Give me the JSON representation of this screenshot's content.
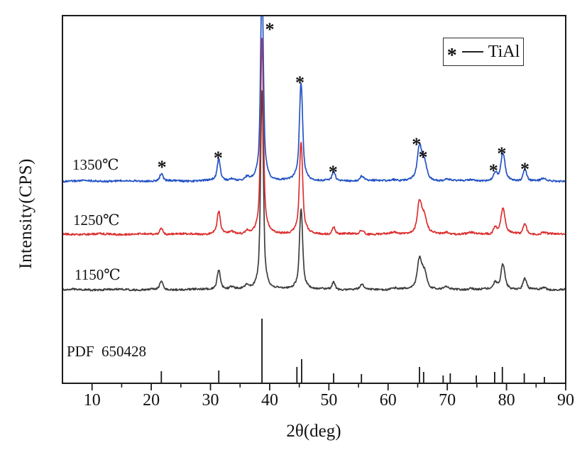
{
  "chart_data": {
    "type": "line",
    "title": "",
    "xlabel": "2θ(deg)",
    "ylabel": "Intensity(CPS)",
    "x_range": [
      5,
      90
    ],
    "x_major_ticks": [
      10,
      20,
      30,
      40,
      50,
      60,
      70,
      80,
      90
    ],
    "x_minor_ticks": [
      15,
      25,
      35,
      45,
      55,
      65,
      75,
      85
    ],
    "y_ticks_shown": false,
    "grid": false,
    "legend": {
      "marker": "*",
      "label": "TiAl",
      "position": "top-right"
    },
    "series": [
      {
        "name": "1350℃",
        "color": "#2353c4",
        "baseline": 255,
        "seed": 3,
        "peaks": [
          [
            21.7,
            10,
            0.35
          ],
          [
            31.4,
            26,
            0.33
          ],
          [
            31.4,
            4,
            1.0
          ],
          [
            33.6,
            3,
            0.45
          ],
          [
            36.2,
            4,
            0.45
          ],
          [
            38.7,
            252,
            0.3
          ],
          [
            38.7,
            28,
            0.85
          ],
          [
            45.3,
            120,
            0.33
          ],
          [
            45.3,
            18,
            0.95
          ],
          [
            50.8,
            12,
            0.35
          ],
          [
            55.6,
            7,
            0.45
          ],
          [
            61.0,
            2,
            0.6
          ],
          [
            65.3,
            40,
            0.45
          ],
          [
            66.1,
            22,
            0.5
          ],
          [
            65.6,
            8,
            1.3
          ],
          [
            69.9,
            3,
            0.5
          ],
          [
            74.0,
            2,
            0.5
          ],
          [
            78.1,
            10,
            0.4
          ],
          [
            79.4,
            32,
            0.42
          ],
          [
            79.4,
            6,
            1.0
          ],
          [
            83.1,
            17,
            0.4
          ],
          [
            86.3,
            3,
            0.5
          ]
        ]
      },
      {
        "name": "1250℃",
        "color": "#dc3030",
        "baseline": 330,
        "seed": 7,
        "peaks": [
          [
            21.7,
            9,
            0.35
          ],
          [
            31.4,
            28,
            0.33
          ],
          [
            31.4,
            4,
            1.0
          ],
          [
            33.6,
            3,
            0.45
          ],
          [
            36.2,
            4,
            0.45
          ],
          [
            38.7,
            250,
            0.3
          ],
          [
            38.7,
            26,
            0.85
          ],
          [
            45.3,
            114,
            0.33
          ],
          [
            45.3,
            16,
            0.95
          ],
          [
            50.8,
            10,
            0.35
          ],
          [
            55.6,
            6,
            0.45
          ],
          [
            61.0,
            2,
            0.6
          ],
          [
            65.3,
            38,
            0.45
          ],
          [
            66.1,
            20,
            0.5
          ],
          [
            65.6,
            8,
            1.3
          ],
          [
            69.9,
            3,
            0.5
          ],
          [
            74.0,
            2,
            0.5
          ],
          [
            78.1,
            9,
            0.4
          ],
          [
            79.4,
            30,
            0.42
          ],
          [
            79.4,
            6,
            1.0
          ],
          [
            83.1,
            14,
            0.4
          ],
          [
            86.3,
            3,
            0.5
          ]
        ]
      },
      {
        "name": "1150℃",
        "color": "#3d3d3d",
        "baseline": 408,
        "seed": 11,
        "peaks": [
          [
            21.7,
            12,
            0.35
          ],
          [
            31.4,
            24,
            0.33
          ],
          [
            31.4,
            4,
            1.0
          ],
          [
            33.6,
            3,
            0.45
          ],
          [
            36.2,
            5,
            0.45
          ],
          [
            38.7,
            255,
            0.3
          ],
          [
            38.7,
            26,
            0.85
          ],
          [
            45.3,
            100,
            0.33
          ],
          [
            45.3,
            14,
            0.95
          ],
          [
            50.8,
            10,
            0.35
          ],
          [
            55.6,
            6,
            0.45
          ],
          [
            61.0,
            2,
            0.6
          ],
          [
            65.3,
            36,
            0.45
          ],
          [
            66.1,
            20,
            0.5
          ],
          [
            65.6,
            8,
            1.3
          ],
          [
            69.9,
            3,
            0.5
          ],
          [
            74.0,
            2,
            0.5
          ],
          [
            78.1,
            9,
            0.4
          ],
          [
            79.4,
            30,
            0.42
          ],
          [
            79.4,
            6,
            1.0
          ],
          [
            83.1,
            15,
            0.4
          ],
          [
            86.3,
            3,
            0.5
          ]
        ]
      }
    ],
    "reference": {
      "label": "PDF  650428",
      "color": "#151515",
      "sticks": [
        [
          21.7,
          16
        ],
        [
          31.4,
          17
        ],
        [
          38.7,
          90
        ],
        [
          44.6,
          22
        ],
        [
          45.4,
          33
        ],
        [
          50.8,
          13
        ],
        [
          55.5,
          12
        ],
        [
          65.3,
          22
        ],
        [
          66.0,
          15
        ],
        [
          69.3,
          10
        ],
        [
          70.5,
          13
        ],
        [
          74.9,
          10
        ],
        [
          78.0,
          15
        ],
        [
          79.3,
          22
        ],
        [
          83.0,
          13
        ],
        [
          86.4,
          8
        ]
      ]
    },
    "peak_markers": {
      "symbol": "*",
      "phase": "TiAl",
      "positions": [
        [
          21.8,
          231
        ],
        [
          31.3,
          218
        ],
        [
          40.0,
          37
        ],
        [
          45.1,
          112
        ],
        [
          50.7,
          238
        ],
        [
          64.8,
          199
        ],
        [
          65.9,
          217
        ],
        [
          77.8,
          236
        ],
        [
          79.2,
          212
        ],
        [
          83.1,
          234
        ]
      ]
    }
  }
}
